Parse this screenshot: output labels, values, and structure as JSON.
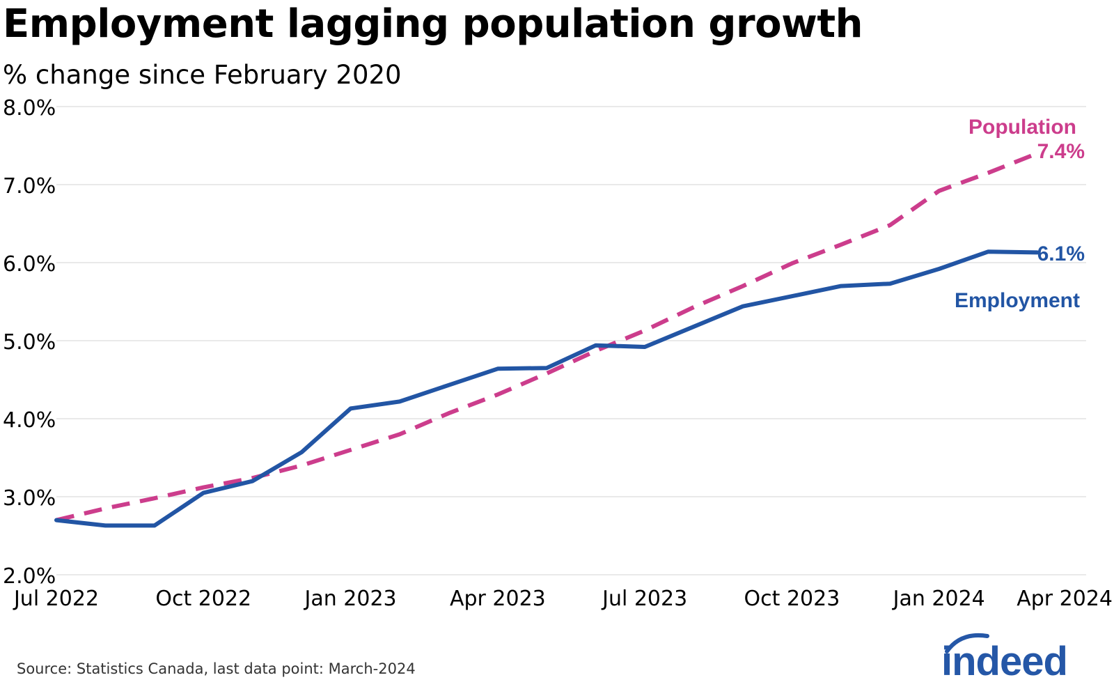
{
  "header": {
    "title": "Employment lagging population growth",
    "subtitle": "% change since February 2020"
  },
  "footer": {
    "source": "Source: Statistics Canada, last data point: March-2024",
    "logo_text": "indeed"
  },
  "colors": {
    "employment": "#2255a4",
    "population": "#cc3d8c",
    "grid": "#dcdcdc",
    "logo": "#2557a7"
  },
  "chart_data": {
    "type": "line",
    "title": "Employment lagging population growth",
    "subtitle": "% change since February 2020",
    "ylim": [
      2.0,
      8.0
    ],
    "y_ticks": [
      2.0,
      3.0,
      4.0,
      5.0,
      6.0,
      7.0,
      8.0
    ],
    "y_tick_labels": [
      "2.0%",
      "3.0%",
      "4.0%",
      "5.0%",
      "6.0%",
      "7.0%",
      "8.0%"
    ],
    "x_range": [
      "2022-07",
      "2024-04"
    ],
    "x_ticks": [
      "2022-07",
      "2022-10",
      "2023-01",
      "2023-04",
      "2023-07",
      "2023-10",
      "2024-01",
      "2024-04"
    ],
    "x_tick_labels": [
      "Jul 2022",
      "Oct 2022",
      "Jan 2023",
      "Apr 2023",
      "Jul 2023",
      "Oct 2023",
      "Jan 2024",
      "Apr 2024"
    ],
    "grid": "horizontal",
    "x": [
      "2022-07",
      "2022-08",
      "2022-09",
      "2022-10",
      "2022-11",
      "2022-12",
      "2023-01",
      "2023-02",
      "2023-03",
      "2023-04",
      "2023-05",
      "2023-06",
      "2023-07",
      "2023-08",
      "2023-09",
      "2023-10",
      "2023-11",
      "2023-12",
      "2024-01",
      "2024-02",
      "2024-03"
    ],
    "series": [
      {
        "name": "Population",
        "style": "dashed",
        "values": [
          2.7,
          2.85,
          2.98,
          3.12,
          3.24,
          3.4,
          3.6,
          3.8,
          4.07,
          4.31,
          4.58,
          4.87,
          5.13,
          5.43,
          5.7,
          5.99,
          6.23,
          6.48,
          6.92,
          7.15,
          7.4
        ],
        "end_label": "7.4%"
      },
      {
        "name": "Employment",
        "style": "solid",
        "values": [
          2.7,
          2.63,
          2.63,
          3.05,
          3.2,
          3.57,
          4.13,
          4.22,
          4.43,
          4.64,
          4.65,
          4.94,
          4.92,
          5.18,
          5.44,
          5.57,
          5.7,
          5.73,
          5.92,
          6.14,
          6.13
        ],
        "end_label": "6.1%"
      }
    ]
  }
}
